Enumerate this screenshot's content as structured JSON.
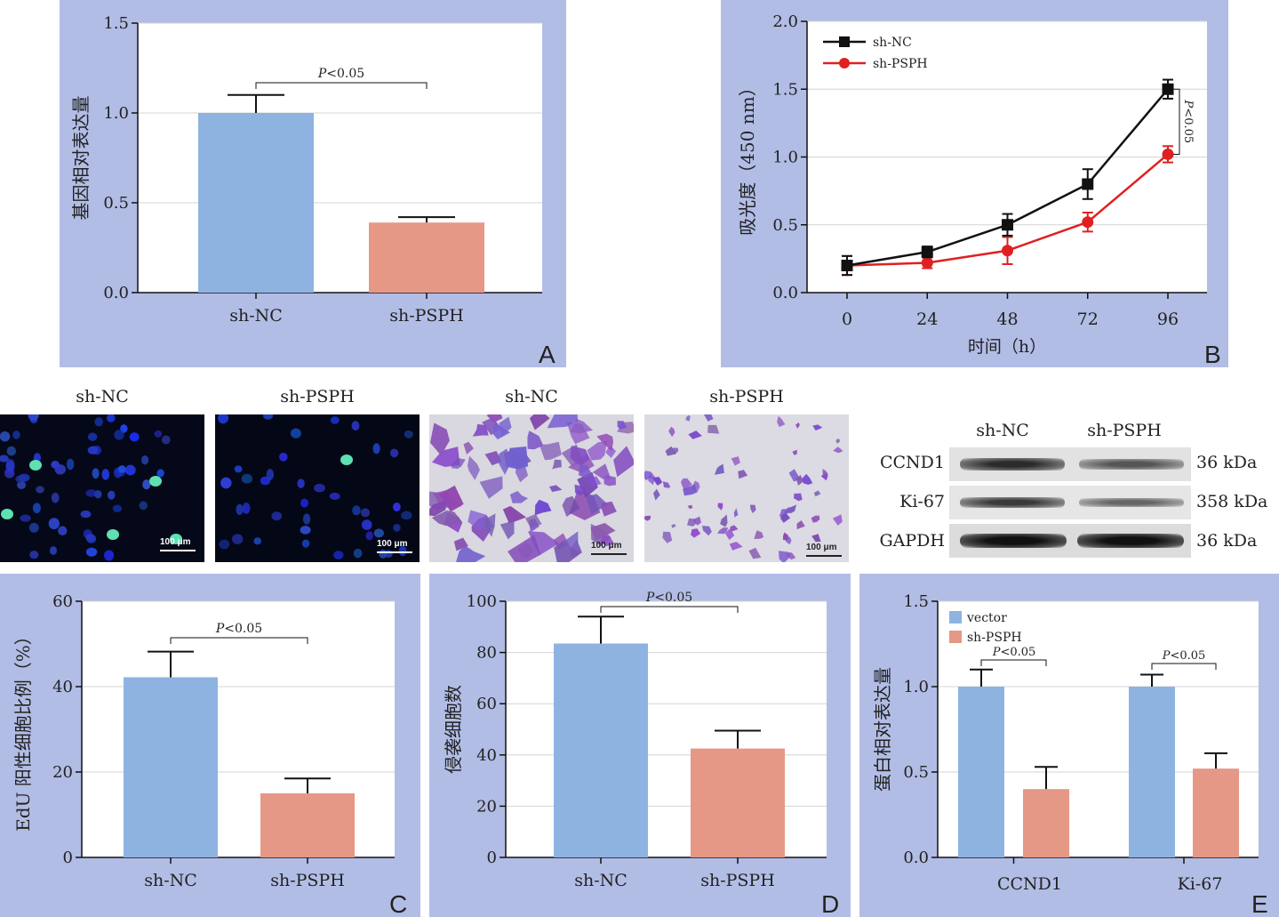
{
  "colors": {
    "panel_bg": "#b2bde6",
    "blue_bar": "#8fb3e0",
    "salmon_bar": "#e59886",
    "line_black": "#111111",
    "line_red": "#e02020"
  },
  "chart_data": [
    {
      "panel": "A",
      "type": "bar",
      "categories": [
        "sh-NC",
        "sh-PSPH"
      ],
      "values": [
        1.0,
        0.39
      ],
      "errors": [
        0.1,
        0.03
      ],
      "ylabel": "基因相对表达量",
      "xlabel": "",
      "ylim": [
        0,
        1.5
      ],
      "yticks": [
        "0.0",
        "0.5",
        "1.0",
        "1.5"
      ],
      "significance": "P<0.05",
      "grid": true
    },
    {
      "panel": "B",
      "type": "line",
      "x": [
        0,
        24,
        48,
        72,
        96
      ],
      "xticks": [
        "0",
        "24",
        "48",
        "72",
        "96"
      ],
      "series": [
        {
          "name": "sh-NC",
          "marker": "square",
          "color": "#111111",
          "values": [
            0.2,
            0.3,
            0.5,
            0.8,
            1.5
          ],
          "errors": [
            0.07,
            0.04,
            0.08,
            0.11,
            0.07
          ]
        },
        {
          "name": "sh-PSPH",
          "marker": "circle",
          "color": "#e02020",
          "values": [
            0.2,
            0.22,
            0.31,
            0.52,
            1.02
          ],
          "errors": [
            0.07,
            0.04,
            0.1,
            0.07,
            0.06
          ]
        }
      ],
      "ylabel": "吸光度（450 nm）",
      "xlabel": "时间（h）",
      "ylim": [
        0,
        2.0
      ],
      "yticks": [
        "0.0",
        "0.5",
        "1.0",
        "1.5",
        "2.0"
      ],
      "significance": "P<0.05",
      "legend": "top-left",
      "grid": true
    },
    {
      "panel": "C",
      "type": "bar",
      "categories": [
        "sh-NC",
        "sh-PSPH"
      ],
      "values": [
        42.2,
        15.0
      ],
      "errors": [
        6.0,
        3.5
      ],
      "ylabel": "EdU 阳性细胞比例（%）",
      "xlabel": "",
      "ylim": [
        0,
        60
      ],
      "yticks": [
        "0",
        "20",
        "40",
        "60"
      ],
      "significance": "P<0.05",
      "grid": true
    },
    {
      "panel": "D",
      "type": "bar",
      "categories": [
        "sh-NC",
        "sh-PSPH"
      ],
      "values": [
        83.5,
        42.5
      ],
      "errors": [
        10.5,
        7.0
      ],
      "ylabel": "侵袭细胞数",
      "xlabel": "",
      "ylim": [
        0,
        100
      ],
      "yticks": [
        "0",
        "20",
        "40",
        "60",
        "80",
        "100"
      ],
      "significance": "P<0.05",
      "grid": true
    },
    {
      "panel": "E",
      "type": "bar",
      "categories": [
        "CCND1",
        "Ki-67"
      ],
      "series": [
        {
          "name": "vector",
          "color": "#8fb3e0",
          "values": [
            1.0,
            1.0
          ],
          "errors": [
            0.1,
            0.07
          ]
        },
        {
          "name": "sh-PSPH",
          "color": "#e59886",
          "values": [
            0.4,
            0.52
          ],
          "errors": [
            0.13,
            0.09
          ]
        }
      ],
      "ylabel": "蛋白相对表达量",
      "xlabel": "",
      "ylim": [
        0,
        1.5
      ],
      "yticks": [
        "0.0",
        "0.5",
        "1.0",
        "1.5"
      ],
      "significance": [
        "P<0.05",
        "P<0.05"
      ],
      "legend": "top-left",
      "grid": true
    }
  ],
  "images": {
    "edu_labels": [
      "sh-NC",
      "sh-PSPH"
    ],
    "transwell_labels": [
      "sh-NC",
      "sh-PSPH"
    ],
    "scale_bar": "100 μm"
  },
  "western_blot": {
    "columns": [
      "sh-NC",
      "sh-PSPH"
    ],
    "rows": [
      {
        "protein": "CCND1",
        "size": "36 kDa"
      },
      {
        "protein": "Ki-67",
        "size": "358 kDa"
      },
      {
        "protein": "GAPDH",
        "size": "36 kDa"
      }
    ]
  }
}
